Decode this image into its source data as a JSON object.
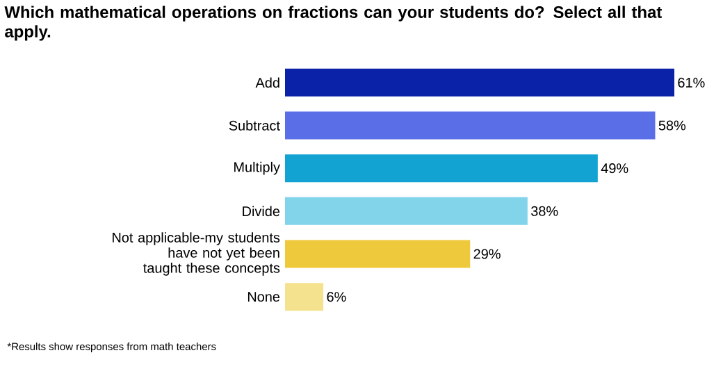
{
  "chart_data": {
    "type": "bar",
    "orientation": "horizontal",
    "title": "Which mathematical operations on fractions can your students do? Select all that apply.",
    "categories": [
      "Add",
      "Subtract",
      "Multiply",
      "Divide",
      "Not applicable-my students have not yet been taught these concepts",
      "None"
    ],
    "values": [
      61,
      58,
      49,
      38,
      29,
      6
    ],
    "colors": [
      "#0a22a8",
      "#5a6ee8",
      "#12a3d3",
      "#82d4ea",
      "#efc93c",
      "#f5e28e"
    ],
    "value_labels": [
      "61%",
      "58%",
      "49%",
      "38%",
      "29%",
      "6%"
    ],
    "annotations": [
      "*Results show responses from math teachers"
    ]
  }
}
